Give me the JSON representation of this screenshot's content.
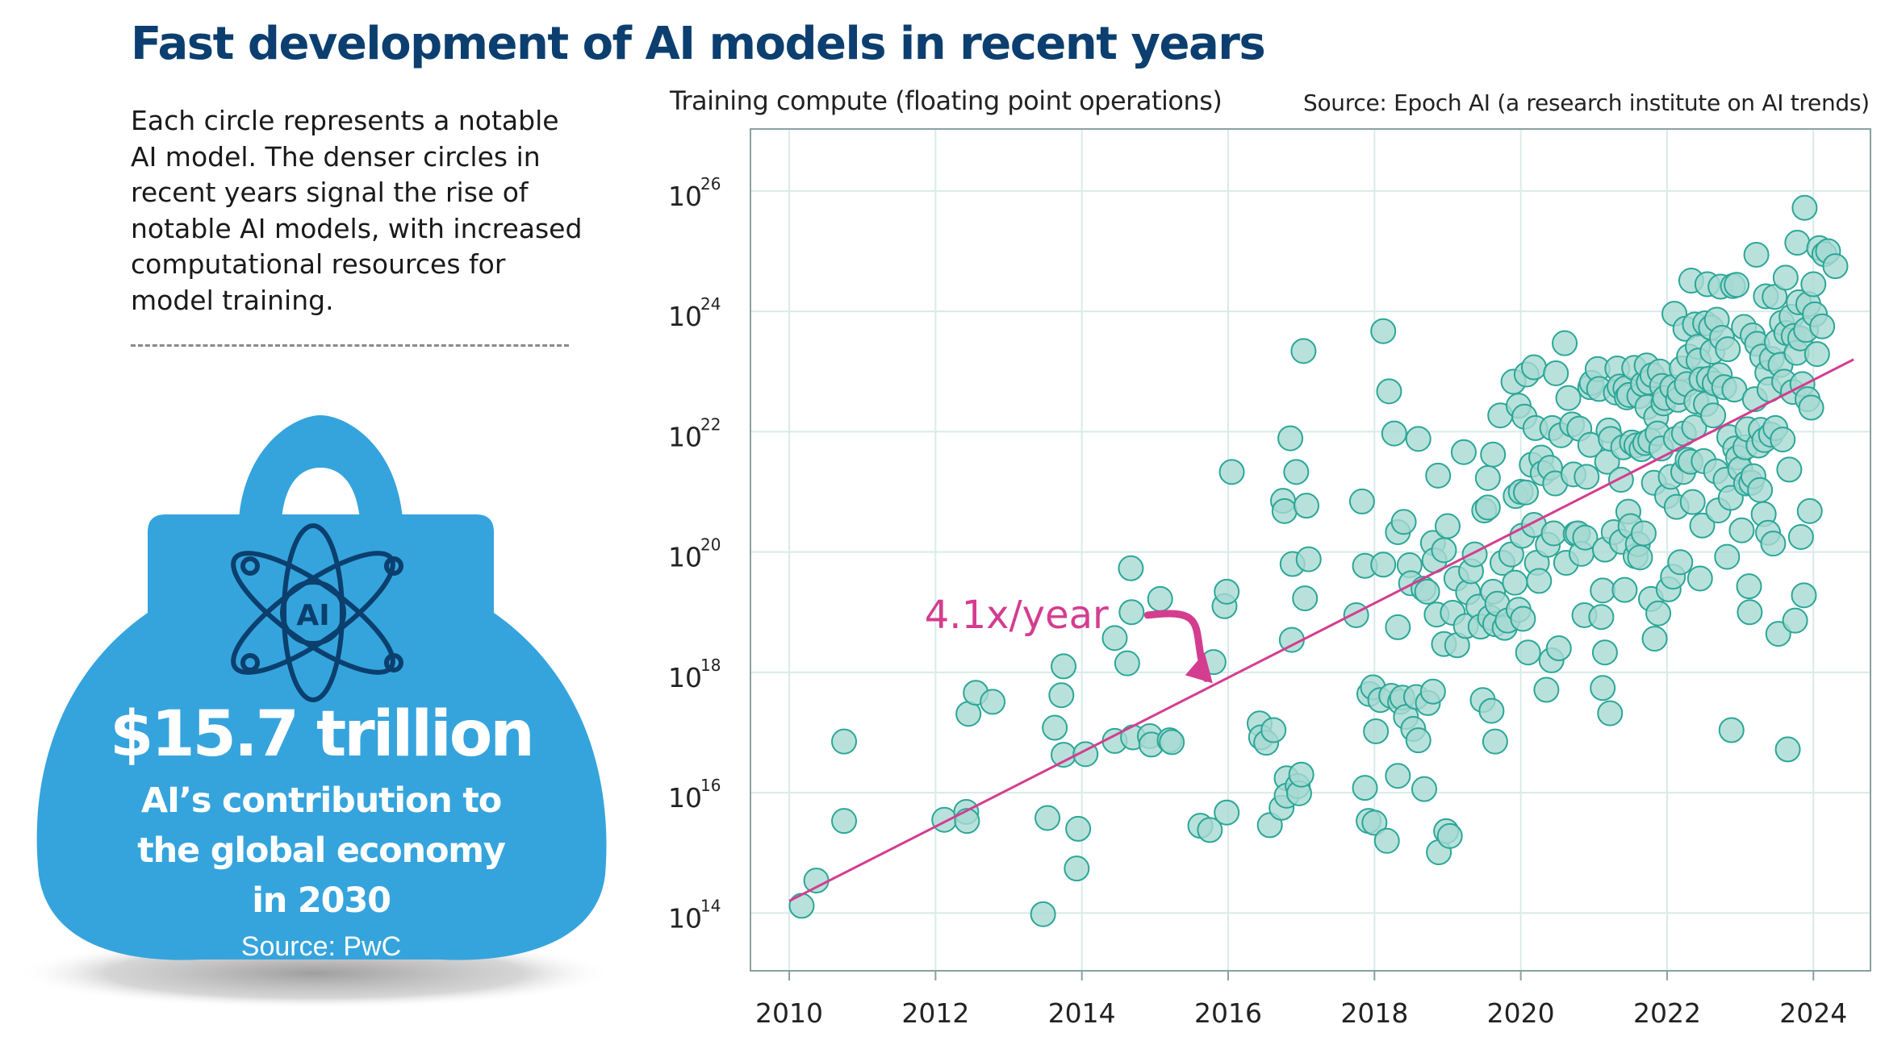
{
  "headline": "Fast development of AI models in recent years",
  "description": "Each circle represents a notable AI model. The denser circles in recent years signal the rise of notable AI models, with increased computational resources for model training.",
  "stat_panel": {
    "icon_text": "AI",
    "value": "$15.7 trillion",
    "label_line1": "AI’s contribution to",
    "label_line2": "the global economy",
    "label_line3": "in 2030",
    "source": "Source: PwC"
  },
  "colors": {
    "title": "#0c3f70",
    "bag": "#35a4dd",
    "icon": "#0b3f6e",
    "dot_fill": "#a7d9d3",
    "dot_stroke": "#2ba797",
    "trend": "#d43d8f",
    "grid": "#d8ebe8",
    "frame": "#8aa0a0"
  },
  "chart_data": {
    "type": "scatter",
    "ylabel": "Training compute (floating point operations)",
    "source": "Source: Epoch AI (a research institute on AI trends)",
    "xlim": [
      2009.47,
      2024.78
    ],
    "ylim": [
      13.04,
      27.03
    ],
    "y_scale": "log10",
    "x_ticks": [
      2010,
      2012,
      2014,
      2016,
      2018,
      2020,
      2022,
      2024
    ],
    "y_ticks": [
      {
        "base": "10",
        "exp": "14",
        "value": 14
      },
      {
        "base": "10",
        "exp": "16",
        "value": 16
      },
      {
        "base": "10",
        "exp": "18",
        "value": 18
      },
      {
        "base": "10",
        "exp": "20",
        "value": 20
      },
      {
        "base": "10",
        "exp": "22",
        "value": 22
      },
      {
        "base": "10",
        "exp": "24",
        "value": 24
      },
      {
        "base": "10",
        "exp": "26",
        "value": 26
      }
    ],
    "grid": true,
    "trend": {
      "label": "4.1x/year",
      "from": [
        2010.0,
        14.2
      ],
      "to": [
        2024.55,
        23.2
      ]
    },
    "points": [
      [
        2010.17,
        14.12
      ],
      [
        2010.37,
        14.54
      ],
      [
        2010.75,
        16.85
      ],
      [
        2010.75,
        15.53
      ],
      [
        2012.12,
        15.55
      ],
      [
        2012.42,
        15.68
      ],
      [
        2012.43,
        15.53
      ],
      [
        2012.45,
        17.31
      ],
      [
        2012.55,
        17.66
      ],
      [
        2012.78,
        17.51
      ],
      [
        2013.47,
        13.98
      ],
      [
        2013.53,
        15.58
      ],
      [
        2013.63,
        17.08
      ],
      [
        2013.72,
        17.62
      ],
      [
        2013.75,
        16.63
      ],
      [
        2013.75,
        18.1
      ],
      [
        2013.93,
        14.74
      ],
      [
        2013.95,
        15.4
      ],
      [
        2014.05,
        16.64
      ],
      [
        2014.45,
        16.86
      ],
      [
        2014.45,
        18.57
      ],
      [
        2014.62,
        18.15
      ],
      [
        2014.68,
        19.0
      ],
      [
        2014.67,
        19.73
      ],
      [
        2014.7,
        16.92
      ],
      [
        2014.93,
        16.94
      ],
      [
        2014.95,
        16.8
      ],
      [
        2015.07,
        19.22
      ],
      [
        2015.2,
        16.87
      ],
      [
        2015.23,
        16.84
      ],
      [
        2015.62,
        15.45
      ],
      [
        2015.75,
        15.38
      ],
      [
        2015.8,
        18.17
      ],
      [
        2015.98,
        15.67
      ],
      [
        2015.95,
        19.1
      ],
      [
        2015.98,
        19.34
      ],
      [
        2016.05,
        21.33
      ],
      [
        2016.43,
        17.15
      ],
      [
        2016.45,
        16.92
      ],
      [
        2016.52,
        16.83
      ],
      [
        2016.57,
        15.46
      ],
      [
        2016.62,
        17.04
      ],
      [
        2016.73,
        15.75
      ],
      [
        2016.75,
        20.85
      ],
      [
        2016.77,
        20.68
      ],
      [
        2016.8,
        16.24
      ],
      [
        2016.8,
        15.95
      ],
      [
        2016.85,
        21.89
      ],
      [
        2016.87,
        18.54
      ],
      [
        2016.88,
        19.8
      ],
      [
        2016.93,
        21.33
      ],
      [
        2016.95,
        16.11
      ],
      [
        2016.97,
        15.99
      ],
      [
        2017.0,
        16.3
      ],
      [
        2017.03,
        23.34
      ],
      [
        2017.05,
        19.23
      ],
      [
        2017.07,
        20.77
      ],
      [
        2017.1,
        19.88
      ],
      [
        2017.75,
        18.95
      ],
      [
        2017.83,
        20.84
      ],
      [
        2017.87,
        19.77
      ],
      [
        2017.87,
        16.08
      ],
      [
        2017.92,
        15.53
      ],
      [
        2017.93,
        17.64
      ],
      [
        2017.98,
        17.75
      ],
      [
        2018.0,
        15.5
      ],
      [
        2018.02,
        17.02
      ],
      [
        2018.08,
        17.54
      ],
      [
        2018.12,
        23.67
      ],
      [
        2018.12,
        19.79
      ],
      [
        2018.17,
        15.2
      ],
      [
        2018.2,
        22.67
      ],
      [
        2018.23,
        17.61
      ],
      [
        2018.27,
        21.97
      ],
      [
        2018.32,
        20.33
      ],
      [
        2018.32,
        18.75
      ],
      [
        2018.32,
        16.28
      ],
      [
        2018.35,
        17.51
      ],
      [
        2018.38,
        17.58
      ],
      [
        2018.4,
        20.5
      ],
      [
        2018.43,
        17.26
      ],
      [
        2018.48,
        19.78
      ],
      [
        2018.5,
        19.48
      ],
      [
        2018.53,
        17.06
      ],
      [
        2018.57,
        17.59
      ],
      [
        2018.6,
        21.88
      ],
      [
        2018.6,
        16.87
      ],
      [
        2018.67,
        19.39
      ],
      [
        2018.68,
        16.06
      ],
      [
        2018.72,
        19.34
      ],
      [
        2018.73,
        17.49
      ],
      [
        2018.8,
        20.15
      ],
      [
        2018.8,
        17.68
      ],
      [
        2018.82,
        19.86
      ],
      [
        2018.85,
        18.96
      ],
      [
        2018.87,
        21.27
      ],
      [
        2018.88,
        15.01
      ],
      [
        2018.95,
        20.03
      ],
      [
        2018.95,
        18.47
      ],
      [
        2018.98,
        15.36
      ],
      [
        2019.0,
        20.43
      ],
      [
        2019.03,
        15.28
      ],
      [
        2019.07,
        18.99
      ],
      [
        2019.12,
        19.56
      ],
      [
        2019.13,
        18.45
      ],
      [
        2019.22,
        21.66
      ],
      [
        2019.25,
        18.77
      ],
      [
        2019.28,
        19.33
      ],
      [
        2019.32,
        19.68
      ],
      [
        2019.37,
        19.96
      ],
      [
        2019.42,
        19.09
      ],
      [
        2019.45,
        18.76
      ],
      [
        2019.48,
        17.54
      ],
      [
        2019.5,
        20.69
      ],
      [
        2019.55,
        21.23
      ],
      [
        2019.55,
        20.74
      ],
      [
        2019.58,
        18.91
      ],
      [
        2019.6,
        17.36
      ],
      [
        2019.62,
        19.34
      ],
      [
        2019.62,
        21.62
      ],
      [
        2019.65,
        18.8
      ],
      [
        2019.65,
        16.85
      ],
      [
        2019.68,
        19.14
      ],
      [
        2019.72,
        22.27
      ],
      [
        2019.75,
        19.82
      ],
      [
        2019.78,
        18.74
      ],
      [
        2019.82,
        18.86
      ],
      [
        2019.87,
        19.96
      ],
      [
        2019.9,
        22.83
      ],
      [
        2019.92,
        19.49
      ],
      [
        2019.93,
        20.93
      ],
      [
        2019.97,
        22.43
      ],
      [
        2019.97,
        19.04
      ],
      [
        2020.0,
        21.0
      ],
      [
        2020.02,
        20.27
      ],
      [
        2020.03,
        18.89
      ],
      [
        2020.05,
        22.25
      ],
      [
        2020.07,
        20.99
      ],
      [
        2020.08,
        22.95
      ],
      [
        2020.1,
        18.33
      ],
      [
        2020.15,
        21.45
      ],
      [
        2020.18,
        23.07
      ],
      [
        2020.18,
        20.45
      ],
      [
        2020.2,
        22.06
      ],
      [
        2020.22,
        19.82
      ],
      [
        2020.25,
        19.52
      ],
      [
        2020.28,
        21.57
      ],
      [
        2020.3,
        21.31
      ],
      [
        2020.35,
        17.71
      ],
      [
        2020.37,
        20.12
      ],
      [
        2020.4,
        21.4
      ],
      [
        2020.42,
        18.2
      ],
      [
        2020.43,
        22.06
      ],
      [
        2020.45,
        20.31
      ],
      [
        2020.47,
        21.14
      ],
      [
        2020.48,
        22.97
      ],
      [
        2020.52,
        18.4
      ],
      [
        2020.55,
        21.94
      ],
      [
        2020.6,
        23.47
      ],
      [
        2020.62,
        19.82
      ],
      [
        2020.65,
        22.56
      ],
      [
        2020.7,
        22.12
      ],
      [
        2020.72,
        21.29
      ],
      [
        2020.75,
        20.3
      ],
      [
        2020.78,
        20.31
      ],
      [
        2020.8,
        22.05
      ],
      [
        2020.83,
        19.97
      ],
      [
        2020.87,
        18.95
      ],
      [
        2020.88,
        20.24
      ],
      [
        2020.9,
        21.25
      ],
      [
        2020.95,
        21.78
      ],
      [
        2020.95,
        22.74
      ],
      [
        2020.97,
        22.81
      ],
      [
        2021.05,
        23.04
      ],
      [
        2021.07,
        22.71
      ],
      [
        2021.1,
        18.92
      ],
      [
        2021.12,
        17.74
      ],
      [
        2021.12,
        19.36
      ],
      [
        2021.15,
        18.33
      ],
      [
        2021.15,
        20.04
      ],
      [
        2021.18,
        21.5
      ],
      [
        2021.2,
        22.02
      ],
      [
        2021.22,
        17.32
      ],
      [
        2021.23,
        21.88
      ],
      [
        2021.27,
        20.33
      ],
      [
        2021.3,
        22.65
      ],
      [
        2021.32,
        23.05
      ],
      [
        2021.35,
        22.75
      ],
      [
        2021.37,
        21.2
      ],
      [
        2021.38,
        20.17
      ],
      [
        2021.4,
        21.74
      ],
      [
        2021.42,
        19.37
      ],
      [
        2021.43,
        22.72
      ],
      [
        2021.45,
        22.57
      ],
      [
        2021.47,
        20.67
      ],
      [
        2021.48,
        22.61
      ],
      [
        2021.5,
        20.43
      ],
      [
        2021.52,
        21.82
      ],
      [
        2021.55,
        23.06
      ],
      [
        2021.57,
        19.93
      ],
      [
        2021.58,
        21.77
      ],
      [
        2021.6,
        20.13
      ],
      [
        2021.62,
        22.59
      ],
      [
        2021.63,
        19.91
      ],
      [
        2021.65,
        21.71
      ],
      [
        2021.67,
        22.79
      ],
      [
        2021.68,
        20.31
      ],
      [
        2021.7,
        21.81
      ],
      [
        2021.72,
        23.1
      ],
      [
        2021.73,
        22.41
      ],
      [
        2021.75,
        22.82
      ],
      [
        2021.77,
        21.85
      ],
      [
        2021.78,
        19.22
      ],
      [
        2021.8,
        22.94
      ],
      [
        2021.82,
        21.15
      ],
      [
        2021.83,
        18.56
      ],
      [
        2021.85,
        22.24
      ],
      [
        2021.87,
        21.97
      ],
      [
        2021.88,
        18.98
      ],
      [
        2021.9,
        23.0
      ],
      [
        2021.92,
        21.72
      ],
      [
        2021.93,
        22.76
      ],
      [
        2021.95,
        22.47
      ],
      [
        2021.97,
        22.56
      ],
      [
        2022.0,
        20.93
      ],
      [
        2022.02,
        19.38
      ],
      [
        2022.05,
        21.25
      ],
      [
        2022.07,
        22.74
      ],
      [
        2022.08,
        19.59
      ],
      [
        2022.1,
        23.96
      ],
      [
        2022.12,
        21.88
      ],
      [
        2022.13,
        20.75
      ],
      [
        2022.15,
        22.53
      ],
      [
        2022.17,
        22.66
      ],
      [
        2022.18,
        19.83
      ],
      [
        2022.2,
        23.05
      ],
      [
        2022.22,
        21.33
      ],
      [
        2022.23,
        21.97
      ],
      [
        2022.25,
        23.71
      ],
      [
        2022.27,
        22.79
      ],
      [
        2022.28,
        21.53
      ],
      [
        2022.3,
        23.25
      ],
      [
        2022.32,
        21.5
      ],
      [
        2022.33,
        24.51
      ],
      [
        2022.35,
        20.83
      ],
      [
        2022.37,
        22.07
      ],
      [
        2022.38,
        23.78
      ],
      [
        2022.4,
        22.5
      ],
      [
        2022.42,
        23.41
      ],
      [
        2022.43,
        23.18
      ],
      [
        2022.45,
        19.56
      ],
      [
        2022.47,
        22.87
      ],
      [
        2022.48,
        20.44
      ],
      [
        2022.5,
        21.51
      ],
      [
        2022.52,
        23.8
      ],
      [
        2022.53,
        22.46
      ],
      [
        2022.55,
        24.45
      ],
      [
        2022.57,
        22.88
      ],
      [
        2022.6,
        23.73
      ],
      [
        2022.62,
        23.33
      ],
      [
        2022.63,
        22.27
      ],
      [
        2022.65,
        22.8
      ],
      [
        2022.67,
        21.34
      ],
      [
        2022.68,
        23.86
      ],
      [
        2022.7,
        20.69
      ],
      [
        2022.72,
        22.94
      ],
      [
        2022.73,
        24.41
      ],
      [
        2022.75,
        23.56
      ],
      [
        2022.78,
        22.74
      ],
      [
        2022.8,
        21.2
      ],
      [
        2022.82,
        19.92
      ],
      [
        2022.83,
        23.37
      ],
      [
        2022.85,
        21.91
      ],
      [
        2022.87,
        20.9
      ],
      [
        2022.88,
        17.04
      ],
      [
        2022.9,
        24.42
      ],
      [
        2022.92,
        22.7
      ],
      [
        2022.93,
        21.72
      ],
      [
        2022.95,
        24.44
      ],
      [
        2022.97,
        21.57
      ],
      [
        2023.0,
        21.38
      ],
      [
        2023.02,
        20.36
      ],
      [
        2023.05,
        23.74
      ],
      [
        2023.07,
        21.74
      ],
      [
        2023.08,
        21.14
      ],
      [
        2023.1,
        22.04
      ],
      [
        2023.12,
        19.43
      ],
      [
        2023.13,
        19.0
      ],
      [
        2023.15,
        21.15
      ],
      [
        2023.17,
        23.6
      ],
      [
        2023.18,
        21.26
      ],
      [
        2023.2,
        22.54
      ],
      [
        2023.22,
        24.94
      ],
      [
        2023.23,
        23.46
      ],
      [
        2023.25,
        21.77
      ],
      [
        2023.27,
        21.03
      ],
      [
        2023.28,
        22.03
      ],
      [
        2023.3,
        23.25
      ],
      [
        2023.32,
        20.63
      ],
      [
        2023.33,
        21.86
      ],
      [
        2023.35,
        24.25
      ],
      [
        2023.37,
        22.98
      ],
      [
        2023.38,
        20.32
      ],
      [
        2023.4,
        22.7
      ],
      [
        2023.42,
        21.95
      ],
      [
        2023.43,
        23.21
      ],
      [
        2023.45,
        20.14
      ],
      [
        2023.47,
        24.24
      ],
      [
        2023.48,
        22.06
      ],
      [
        2023.5,
        23.49
      ],
      [
        2023.52,
        18.64
      ],
      [
        2023.55,
        23.11
      ],
      [
        2023.57,
        23.81
      ],
      [
        2023.58,
        21.87
      ],
      [
        2023.6,
        22.83
      ],
      [
        2023.62,
        24.56
      ],
      [
        2023.63,
        23.64
      ],
      [
        2023.65,
        16.72
      ],
      [
        2023.67,
        21.37
      ],
      [
        2023.7,
        23.91
      ],
      [
        2023.72,
        22.66
      ],
      [
        2023.73,
        23.59
      ],
      [
        2023.75,
        18.86
      ],
      [
        2023.77,
        23.31
      ],
      [
        2023.78,
        25.14
      ],
      [
        2023.8,
        24.15
      ],
      [
        2023.82,
        23.55
      ],
      [
        2023.83,
        20.25
      ],
      [
        2023.85,
        22.79
      ],
      [
        2023.87,
        19.28
      ],
      [
        2023.88,
        25.72
      ],
      [
        2023.9,
        23.69
      ],
      [
        2023.92,
        22.54
      ],
      [
        2023.93,
        24.12
      ],
      [
        2023.95,
        20.68
      ],
      [
        2023.97,
        22.4
      ],
      [
        2024.0,
        24.45
      ],
      [
        2024.02,
        23.95
      ],
      [
        2024.05,
        23.29
      ],
      [
        2024.08,
        25.05
      ],
      [
        2024.12,
        23.75
      ],
      [
        2024.15,
        24.95
      ],
      [
        2024.2,
        25.0
      ],
      [
        2024.3,
        24.75
      ]
    ]
  }
}
